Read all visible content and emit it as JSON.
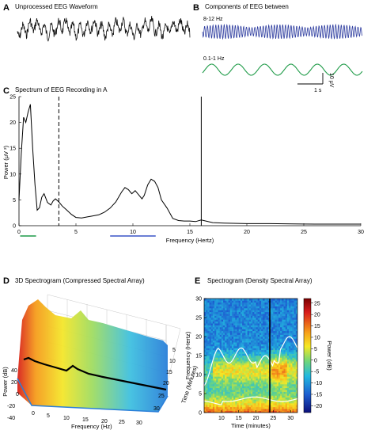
{
  "panels": {
    "A": {
      "letter": "A",
      "title": "Unprocessed EEG Waveform"
    },
    "B": {
      "letter": "B",
      "title": "Components of EEG between",
      "band1_label": "8-12 Hz",
      "band2_label": "0.1-1 Hz",
      "scale_time": "1 s",
      "scale_amp": "10 μV",
      "colors": {
        "alpha_band": "#2b3a9e",
        "slow_band": "#1f9b48"
      }
    },
    "C": {
      "letter": "C",
      "title": "Spectrum of EEG Recording in A"
    },
    "D": {
      "letter": "D",
      "title": "3D Spectrogram (Compressed Spectral Array)"
    },
    "E": {
      "letter": "E",
      "title": "Spectrogram (Density Spectral Array)"
    }
  },
  "chart_data": [
    {
      "panel": "C",
      "type": "line",
      "title": "Spectrum of EEG Recording in A",
      "xlabel": "Frequency (Hertz)",
      "ylabel": "Power (μV ²)",
      "xlim": [
        0,
        30
      ],
      "ylim": [
        0,
        25
      ],
      "xticks": [
        "0",
        "5",
        "10",
        "15",
        "20",
        "25",
        "30"
      ],
      "yticks": [
        "0",
        "5",
        "10",
        "15",
        "20",
        "25"
      ],
      "x": [
        0,
        0.2,
        0.4,
        0.6,
        0.8,
        1.0,
        1.2,
        1.4,
        1.6,
        1.8,
        2.0,
        2.2,
        2.5,
        2.8,
        3.0,
        3.2,
        3.5,
        3.8,
        4.2,
        4.6,
        5.0,
        5.5,
        6.0,
        6.5,
        7.0,
        7.5,
        8.0,
        8.5,
        9.0,
        9.3,
        9.6,
        9.9,
        10.2,
        10.5,
        10.8,
        11.0,
        11.3,
        11.6,
        11.9,
        12.2,
        12.5,
        13.0,
        13.5,
        14.0,
        14.5,
        15.0,
        15.5,
        16.0,
        17.0,
        18.0,
        20.0,
        22.0,
        24.0,
        26.0,
        28.0,
        30.0
      ],
      "y": [
        5,
        14,
        21,
        20,
        22,
        23.5,
        15,
        8,
        3,
        3.5,
        5.5,
        6.2,
        4.5,
        4.0,
        4.8,
        5.2,
        4.6,
        3.8,
        3.0,
        2.2,
        1.6,
        1.5,
        1.7,
        1.9,
        2.1,
        2.6,
        3.4,
        4.6,
        6.5,
        7.4,
        7.0,
        6.2,
        6.8,
        6.0,
        5.2,
        5.9,
        7.9,
        9.0,
        8.6,
        7.4,
        5.0,
        3.4,
        1.4,
        1.0,
        0.9,
        0.9,
        0.8,
        1.1,
        0.6,
        0.5,
        0.4,
        0.4,
        0.35,
        0.3,
        0.3,
        0.3
      ],
      "vlines": [
        {
          "x": 3.5,
          "style": "dashed"
        },
        {
          "x": 16,
          "style": "solid"
        }
      ],
      "band_markers": [
        {
          "from": 0.1,
          "to": 1.5,
          "color": "#1f9b48"
        },
        {
          "from": 8,
          "to": 12,
          "color": "#3a55c7"
        }
      ]
    },
    {
      "panel": "D",
      "type": "area",
      "title": "3D Spectrogram (Compressed Spectral Array)",
      "xlabel": "Frequency (Hz)",
      "ylabel": "Power (dB)",
      "zlabel": "Time (Minutes)",
      "xticks": [
        "0",
        "5",
        "10",
        "15",
        "20",
        "25",
        "30"
      ],
      "yticks": [
        "-40",
        "-20",
        "0",
        "20",
        "40"
      ],
      "zticks": [
        "5",
        "10",
        "15",
        "20",
        "25",
        "30"
      ]
    },
    {
      "panel": "E",
      "type": "heatmap",
      "title": "Spectrogram (Density Spectral Array)",
      "xlabel": "Time (minutes)",
      "ylabel": "Frequency (Hertz)",
      "colorbar_label": "Power (dB)",
      "xlim": [
        5,
        32
      ],
      "ylim": [
        0,
        30
      ],
      "xticks": [
        "10",
        "15",
        "20",
        "25",
        "30"
      ],
      "yticks": [
        "0",
        "5",
        "10",
        "15",
        "20",
        "25",
        "30"
      ],
      "colorbar_ticks": [
        "25",
        "20",
        "15",
        "10",
        "5",
        "0",
        "-5",
        "-10",
        "-15",
        "-20"
      ],
      "clim": [
        -23,
        27
      ],
      "marker_time": 24
    }
  ]
}
